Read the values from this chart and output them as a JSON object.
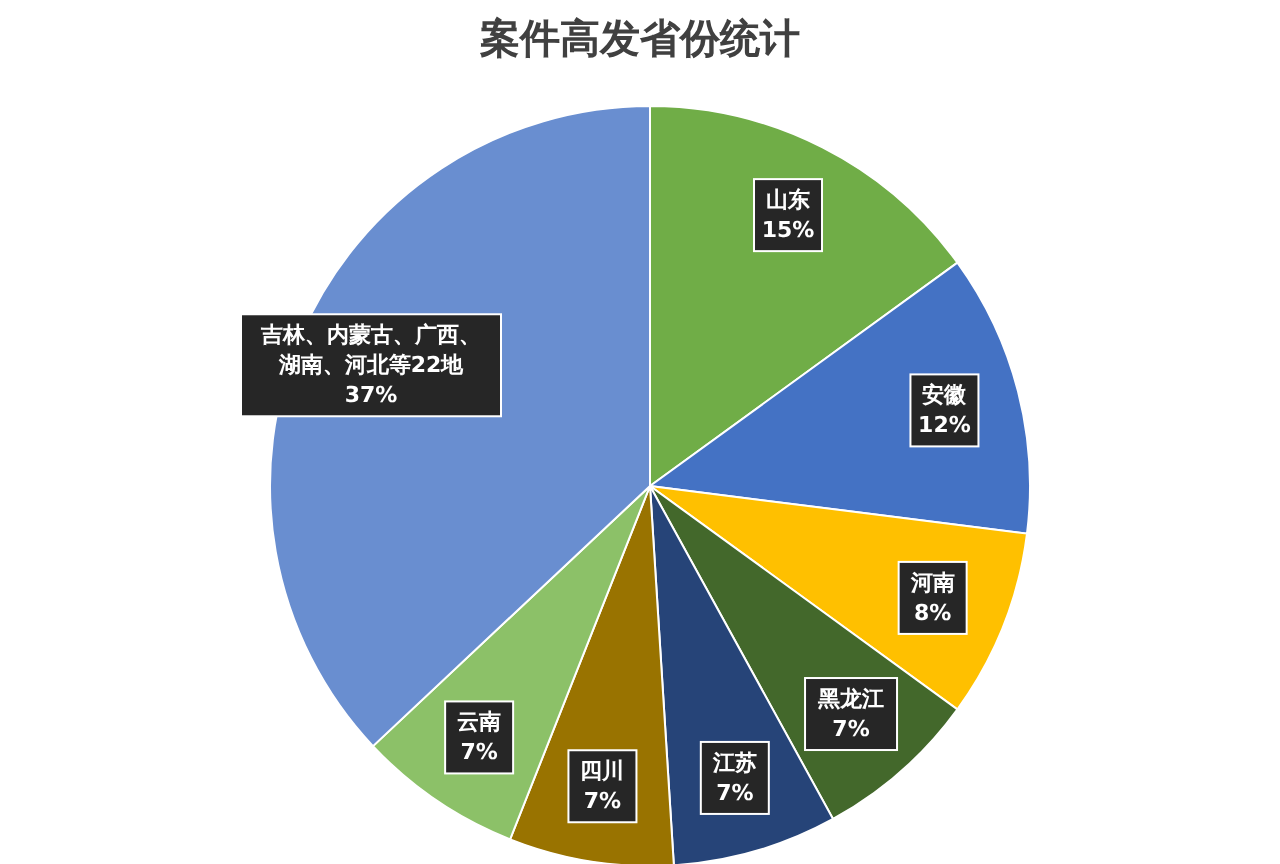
{
  "chart_data": {
    "type": "pie",
    "title": "案件高发省份统计",
    "categories": [
      "山东",
      "安徽",
      "河南",
      "黑龙江",
      "江苏",
      "四川",
      "云南",
      "吉林、内蒙古、广西、湖南、河北等22地"
    ],
    "values": [
      15,
      12,
      8,
      7,
      7,
      7,
      7,
      37
    ],
    "value_labels": [
      "15%",
      "12%",
      "8%",
      "7%",
      "7%",
      "7%",
      "7%",
      "37%"
    ],
    "colors": [
      "#70ad47",
      "#4472c4",
      "#ffc000",
      "#43682b",
      "#264478",
      "#997300",
      "#8cc168",
      "#698ed0"
    ],
    "legend": false
  }
}
